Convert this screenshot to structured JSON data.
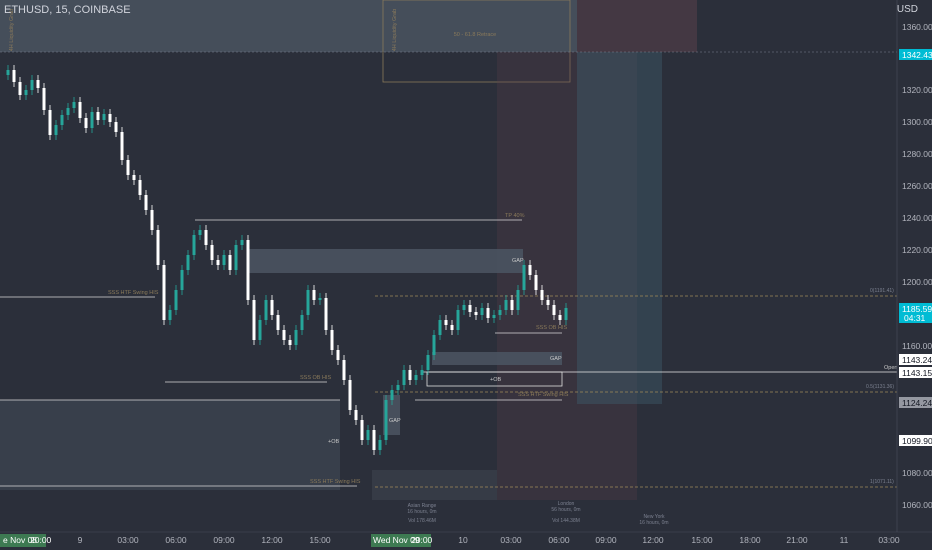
{
  "header": {
    "symbol": "ETHUSD, 15, COINBASE",
    "currency": "USD"
  },
  "colors": {
    "up": "#26a69a",
    "down": "#ffffff",
    "background": "#2b2f3a",
    "line": "#d8d8d8",
    "annotation": "#a08a5a",
    "price_tag_cyan": "#00bcd4"
  },
  "price_axis": {
    "ticks": [
      "1360.00",
      "1320.00",
      "1300.00",
      "1280.00",
      "1260.00",
      "1240.00",
      "1220.00",
      "1200.00",
      "1160.00",
      "1080.00",
      "1060.00"
    ],
    "tags": [
      {
        "label": "1342.43",
        "style": "cyan"
      },
      {
        "label": "1185.59",
        "sub": "04:31",
        "style": "cyan"
      },
      {
        "label": "1143.24",
        "style": "white"
      },
      {
        "label": "1143.15",
        "style": "white"
      },
      {
        "label": "1124.24",
        "style": "grey"
      },
      {
        "label": "1099.90",
        "style": "white"
      }
    ]
  },
  "time_axis": {
    "ticks": [
      "9",
      "03:00",
      "06:00",
      "09:00",
      "12:00",
      "15:00",
      "18:00",
      "10",
      "03:00",
      "06:00",
      "09:00",
      "12:00",
      "15:00",
      "18:00",
      "21:00",
      "11",
      "03:00"
    ],
    "markers": [
      {
        "label": "e Nov 08",
        "time": "20:00"
      },
      {
        "label": "Wed Nov 09",
        "time": "20:00"
      }
    ]
  },
  "annotations": {
    "retrace": "50 - 61.8 Retrace",
    "box_vertical_left": "4H Liquidity Grab",
    "box_vertical_right": "4H Liquidity Grab",
    "tp_label": "TP 40%",
    "gap_top": "GAP",
    "gap_mid": "GAP",
    "gap_left": "GAP",
    "ob_right": "+OB",
    "ob_left": "+OB",
    "swing_htf_left": "SSS HTF Swing HIS",
    "ssl_mid": "SSS OB HIS",
    "swing_htf_bottom": "SSS HTF Swing HIS",
    "swing_htf_right": "SSS HTF Swing HIS",
    "ssl_right": "SSS OB HIS",
    "level_high": "0(1191.41)",
    "open_label": "Open",
    "fib_05": "0.5(1131.36)",
    "fib_1": "1(1071.11)",
    "session_asia": "Asian Range",
    "session_asia_sub": "16 hours, 0m",
    "session_asia_vol": "Vol 178.46M",
    "session_london": "London",
    "session_london_sub": "56 hours, 0m",
    "session_london_vol": "Vol 144.38M",
    "session_ny": "New York",
    "session_ny_sub": "16 hours, 0m"
  }
}
